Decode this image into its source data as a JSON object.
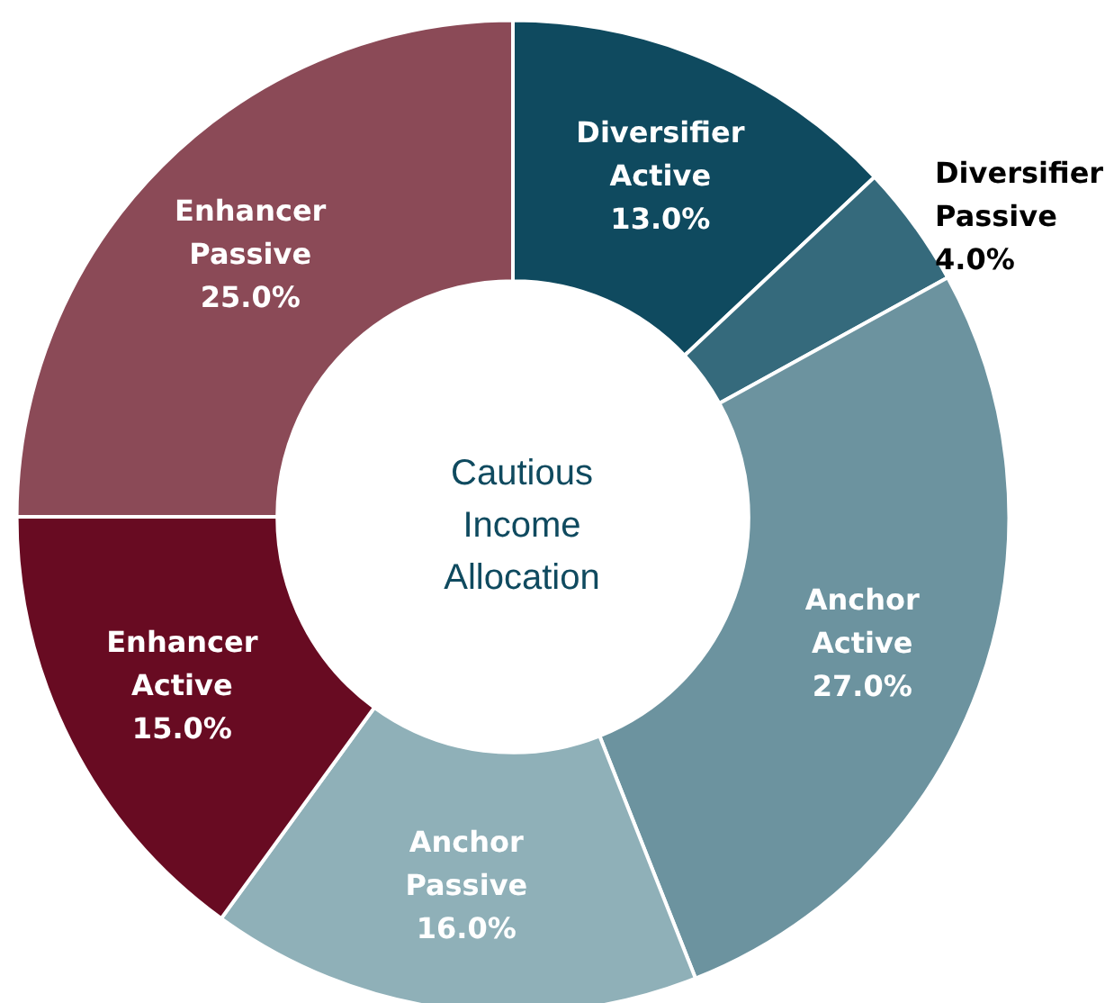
{
  "chart_data": {
    "type": "donut",
    "title": "Cautious Income Allocation",
    "categories": [
      "Diversifier Active",
      "Diversifier Passive",
      "Anchor Active",
      "Anchor Passive",
      "Enhancer Active",
      "Enhancer Passive"
    ],
    "values": [
      13,
      4,
      27,
      16,
      15,
      25
    ],
    "value_labels": [
      "13.0%",
      "4.0%",
      "27.0%",
      "16.0%",
      "15.0%",
      "25.0%"
    ],
    "colors": [
      "#0f4a5f",
      "#356a7c",
      "#6c939f",
      "#8fb0b8",
      "#680b22",
      "#8b4a57"
    ],
    "legend": false
  }
}
